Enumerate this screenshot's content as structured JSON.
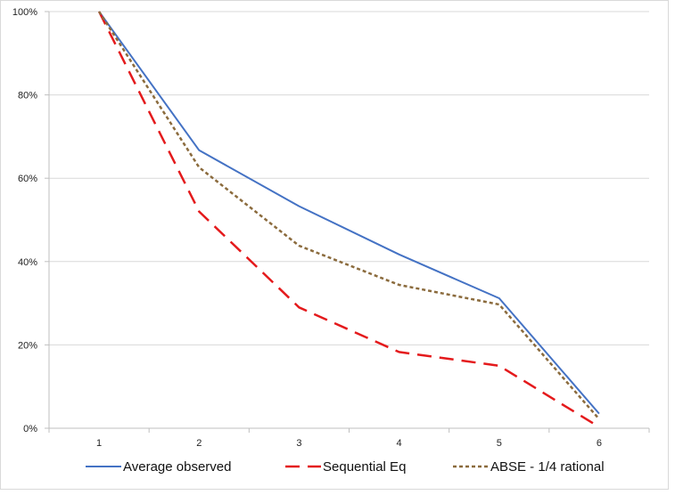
{
  "chart_data": {
    "type": "line",
    "categories": [
      "1",
      "2",
      "3",
      "4",
      "5",
      "6"
    ],
    "y_tick_labels": [
      "0%",
      "20%",
      "40%",
      "60%",
      "80%",
      "100%"
    ],
    "ylim": [
      0,
      100
    ],
    "y_unit": "%",
    "grid": "horizontal",
    "legend_position": "bottom",
    "series": [
      {
        "name": "Average observed",
        "values": [
          100,
          66.7,
          53.3,
          41.7,
          31.2,
          3.5
        ],
        "color": "#4472C4",
        "dash": "solid"
      },
      {
        "name": "Sequential Eq",
        "values": [
          100,
          52,
          29,
          18.3,
          15,
          0.3
        ],
        "color": "#E41A1C",
        "dash": "long-dash"
      },
      {
        "name": "ABSE - 1/4 rational",
        "values": [
          100,
          62.6,
          43.8,
          34.4,
          29.7,
          2.2
        ],
        "color": "#8B6B3D",
        "dash": "short-dash"
      }
    ]
  }
}
